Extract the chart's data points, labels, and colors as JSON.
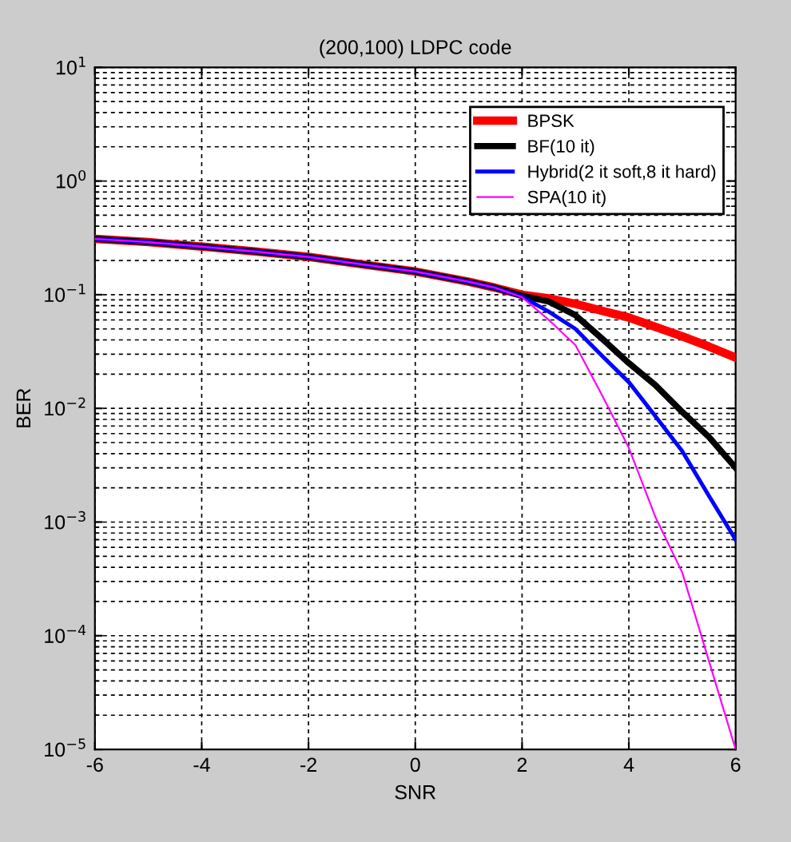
{
  "chart_data": {
    "type": "line",
    "title": "(200,100) LDPC code",
    "xlabel": "SNR",
    "ylabel": "BER",
    "log": "y",
    "xlim": [
      -6,
      6
    ],
    "xticks": [
      -6,
      -4,
      -2,
      0,
      2,
      4,
      6
    ],
    "ylim": [
      1e-05,
      10
    ],
    "yticks": [
      {
        "value": 1e-05,
        "label": "10$^{−5}$"
      },
      {
        "value": 0.0001,
        "label": "10$^{−4}$"
      },
      {
        "value": 0.001,
        "label": "10$^{−3}$"
      },
      {
        "value": 0.01,
        "label": "10$^{−2}$"
      },
      {
        "value": 0.1,
        "label": "10$^{−1}$"
      },
      {
        "value": 1,
        "label": "10$^{0}$"
      },
      {
        "value": 10,
        "label": "10$^{1}$"
      }
    ],
    "grid": true,
    "legend": "top right",
    "line_style": "solid",
    "marker": "none",
    "x": [
      -6,
      -5,
      -4,
      -3,
      -2,
      -1,
      0,
      1,
      1.5,
      2,
      2.5,
      3,
      3.5,
      4,
      4.5,
      5,
      5.5,
      6
    ],
    "series": [
      {
        "name": "BPSK",
        "color": "#ff0000",
        "values": [
          0.31,
          0.29,
          0.265,
          0.24,
          0.215,
          0.185,
          0.16,
          0.13,
          0.115,
          0.1,
          0.093,
          0.083,
          0.072,
          0.063,
          0.052,
          0.043,
          0.035,
          0.028
        ]
      },
      {
        "name": "BF(10 it)",
        "color": "#000000",
        "values": [
          0.31,
          0.29,
          0.265,
          0.24,
          0.215,
          0.185,
          0.16,
          0.13,
          0.115,
          0.098,
          0.087,
          0.066,
          0.041,
          0.025,
          0.016,
          0.0093,
          0.0056,
          0.003
        ]
      },
      {
        "name": "Hybrid(2 it soft,8 it hard)",
        "color": "#0000ff",
        "values": [
          0.31,
          0.29,
          0.265,
          0.24,
          0.215,
          0.185,
          0.16,
          0.13,
          0.115,
          0.096,
          0.071,
          0.05,
          0.029,
          0.017,
          0.0085,
          0.0042,
          0.0017,
          0.0007
        ]
      },
      {
        "name": "SPA(10 it)",
        "color": "#ff00ff",
        "values": [
          0.31,
          0.29,
          0.265,
          0.24,
          0.215,
          0.185,
          0.16,
          0.13,
          0.115,
          0.095,
          0.06,
          0.036,
          0.013,
          0.0045,
          0.0011,
          0.00036,
          6e-05,
          1e-05
        ]
      }
    ]
  }
}
